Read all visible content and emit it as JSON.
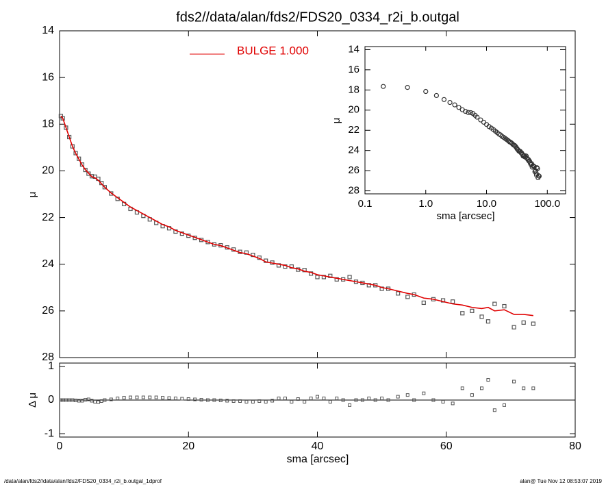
{
  "chart_data": [
    {
      "type": "scatter",
      "title": "fds2//data/alan/fds2/FDS20_0334_r2i_b.outgal",
      "ylabel": "μ",
      "xlim": [
        0,
        80
      ],
      "xticks": [
        0,
        20,
        40,
        60,
        80
      ],
      "ylim": [
        28,
        14
      ],
      "yticks": [
        14,
        16,
        18,
        20,
        22,
        24,
        26,
        28
      ],
      "color": "#555555",
      "x": [
        0.2,
        0.5,
        1,
        1.5,
        2,
        2.5,
        3,
        3.5,
        4,
        4.5,
        5,
        5.5,
        6,
        6.5,
        7,
        8,
        9,
        10,
        11,
        12,
        13,
        14,
        15,
        16,
        17,
        18,
        19,
        20,
        21,
        22,
        23,
        24,
        25,
        26,
        27,
        28,
        29,
        30,
        31,
        32,
        33,
        34,
        35,
        36,
        37,
        38,
        39,
        40,
        41,
        42,
        43,
        44,
        45,
        46,
        47,
        48,
        49,
        50,
        51,
        52.5,
        54,
        55,
        56.5,
        58,
        59.5,
        61,
        62.5,
        64,
        65.5,
        66.5,
        67.5,
        69,
        70.5,
        72,
        73.5
      ],
      "values": [
        17.65,
        17.75,
        18.15,
        18.55,
        18.95,
        19.24,
        19.48,
        19.73,
        19.96,
        20.12,
        20.23,
        20.25,
        20.34,
        20.52,
        20.7,
        20.97,
        21.2,
        21.42,
        21.63,
        21.78,
        21.93,
        22.08,
        22.23,
        22.37,
        22.46,
        22.6,
        22.69,
        22.78,
        22.87,
        22.96,
        23.05,
        23.15,
        23.19,
        23.28,
        23.37,
        23.47,
        23.5,
        23.6,
        23.72,
        23.85,
        23.93,
        24.05,
        24.1,
        24.1,
        24.23,
        24.25,
        24.4,
        24.55,
        24.55,
        24.5,
        24.65,
        24.65,
        24.55,
        24.75,
        24.8,
        24.9,
        24.9,
        25.05,
        25.05,
        25.25,
        25.4,
        25.3,
        25.65,
        25.5,
        25.55,
        25.6,
        26.1,
        26.0,
        26.25,
        26.45,
        25.7,
        25.8,
        26.7,
        26.5,
        26.55
      ],
      "model": {
        "name": "BULGE  1.000",
        "color": "#e00000",
        "values": [
          17.65,
          17.75,
          18.15,
          18.55,
          18.95,
          19.25,
          19.5,
          19.75,
          19.95,
          20.1,
          20.25,
          20.3,
          20.4,
          20.55,
          20.7,
          20.95,
          21.15,
          21.35,
          21.55,
          21.7,
          21.85,
          22.0,
          22.15,
          22.3,
          22.4,
          22.55,
          22.65,
          22.75,
          22.85,
          22.95,
          23.05,
          23.15,
          23.2,
          23.3,
          23.4,
          23.5,
          23.55,
          23.65,
          23.75,
          23.9,
          23.95,
          24.0,
          24.05,
          24.15,
          24.2,
          24.3,
          24.35,
          24.45,
          24.5,
          24.55,
          24.6,
          24.65,
          24.7,
          24.75,
          24.8,
          24.85,
          24.9,
          25.0,
          25.05,
          25.15,
          25.25,
          25.3,
          25.45,
          25.5,
          25.6,
          25.7,
          25.75,
          25.85,
          25.9,
          25.85,
          26.0,
          25.95,
          26.15,
          26.15,
          26.2
        ]
      }
    },
    {
      "type": "residual",
      "ylabel": "Δ μ",
      "xlabel": "sma [arcsec]",
      "ylim": [
        -1.1,
        1.1
      ],
      "yticks": [
        -1,
        0,
        1
      ],
      "values": [
        0,
        0,
        0,
        0,
        0,
        -0.01,
        -0.02,
        -0.02,
        0.01,
        0.02,
        -0.02,
        -0.05,
        -0.06,
        -0.03,
        0,
        0.02,
        0.05,
        0.07,
        0.08,
        0.08,
        0.08,
        0.08,
        0.08,
        0.07,
        0.06,
        0.05,
        0.04,
        0.03,
        0.02,
        0.01,
        0,
        0,
        -0.01,
        -0.02,
        -0.03,
        -0.03,
        -0.05,
        -0.05,
        -0.03,
        -0.05,
        -0.02,
        0.05,
        0.05,
        -0.05,
        0.03,
        -0.05,
        0.05,
        0.1,
        0.05,
        -0.05,
        0.05,
        0,
        -0.15,
        0,
        0,
        0.05,
        0,
        0.05,
        0,
        0.1,
        0.15,
        0,
        0.2,
        0,
        -0.05,
        -0.1,
        0.35,
        0.15,
        0.35,
        0.6,
        -0.3,
        -0.15,
        0.55,
        0.35,
        0.35
      ]
    },
    {
      "type": "inset",
      "ylabel": "μ",
      "xlabel": "sma [arcsec]",
      "log_x": true,
      "xlim": [
        0.1,
        200
      ],
      "xticks": [
        {
          "value": 0.1,
          "label": "0.1"
        },
        {
          "value": 1,
          "label": "1.0"
        },
        {
          "value": 10,
          "label": "10.0"
        },
        {
          "value": 100,
          "label": "100.0"
        }
      ],
      "ylim": [
        28.3,
        13.7
      ],
      "yticks": [
        14,
        16,
        18,
        20,
        22,
        24,
        26,
        28
      ]
    }
  ],
  "footer": {
    "left": "/data/alan/fds2//data/alan/fds2/FDS20_0334_r2i_b.outgal_1dprof",
    "right": "alan@  Tue Nov 12 08:53:07 2019"
  }
}
